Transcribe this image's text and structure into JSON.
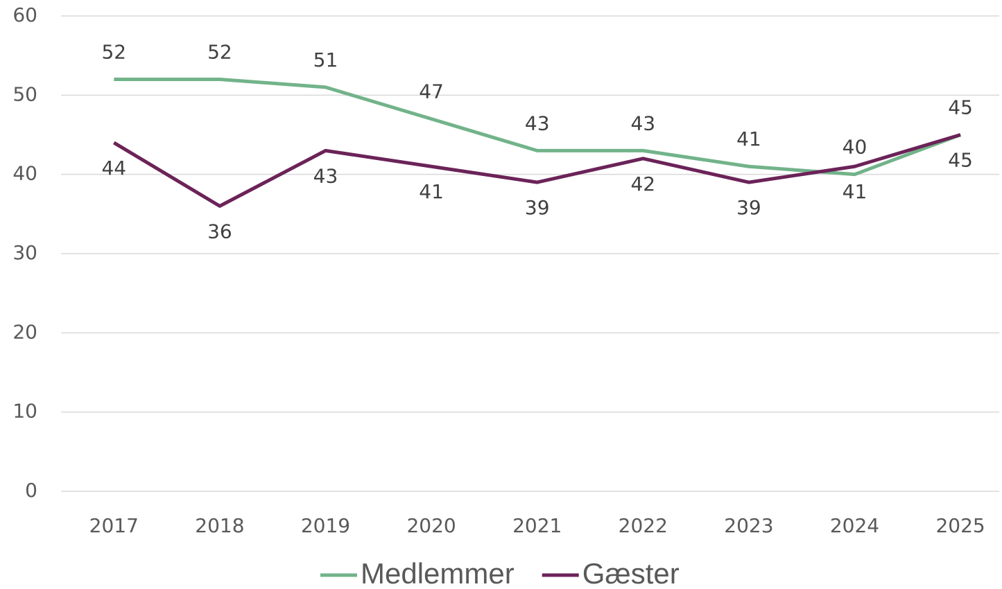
{
  "chart_data": {
    "type": "line",
    "categories": [
      "2017",
      "2018",
      "2019",
      "2020",
      "2021",
      "2022",
      "2023",
      "2024",
      "2025"
    ],
    "series": [
      {
        "name": "Medlemmer",
        "color": "#72b38a",
        "values": [
          52,
          52,
          51,
          47,
          43,
          43,
          41,
          40,
          45
        ]
      },
      {
        "name": "Gæster",
        "color": "#6b2358",
        "values": [
          44,
          36,
          43,
          41,
          39,
          42,
          39,
          41,
          45
        ]
      }
    ],
    "ylim": [
      0,
      60
    ],
    "yticks": [
      0,
      10,
      20,
      30,
      40,
      50,
      60
    ],
    "grid": true,
    "legend": "bottom"
  }
}
